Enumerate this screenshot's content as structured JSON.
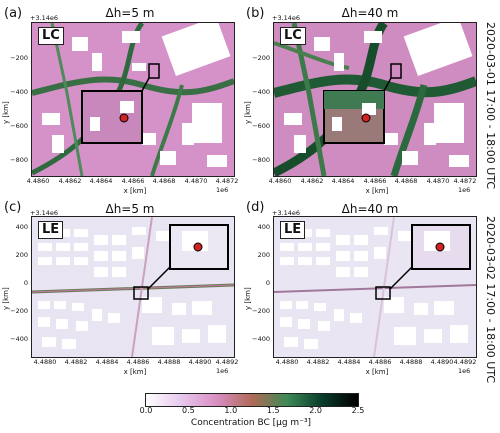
{
  "figure": {
    "date_top": "2020-03-01 17:00 - 18:00 UTC",
    "date_bottom": "2020-03-02 17:00 - 18:00 UTC",
    "x_offset_label": "1e6",
    "y_offset_label": "+3.14e6",
    "xlabel": "x [km]",
    "ylabel": "y [km]"
  },
  "panels": [
    {
      "letter": "(a)",
      "title": "Δh=5 m",
      "tag": "LC",
      "xticks": [
        "4.4860",
        "4.4862",
        "4.4864",
        "4.4866",
        "4.4868",
        "4.4870",
        "4.4872"
      ],
      "yticks": [
        "−200",
        "−400",
        "−600",
        "−800"
      ]
    },
    {
      "letter": "(b)",
      "title": "Δh=40 m",
      "tag": "LC",
      "xticks": [
        "4.4860",
        "4.4862",
        "4.4864",
        "4.4866",
        "4.4868",
        "4.4870",
        "4.4872"
      ],
      "yticks": [
        "−200",
        "−400",
        "−600",
        "−800"
      ]
    },
    {
      "letter": "(c)",
      "title": "Δh=5 m",
      "tag": "LE",
      "xticks": [
        "4.4880",
        "4.4882",
        "4.4884",
        "4.4886",
        "4.4888",
        "4.4890",
        "4.4892"
      ],
      "yticks": [
        "400",
        "200",
        "0",
        "−200",
        "−400"
      ]
    },
    {
      "letter": "(d)",
      "title": "Δh=40 m",
      "tag": "LE",
      "xticks": [
        "4.4880",
        "4.4882",
        "4.4884",
        "4.4886",
        "4.4888",
        "4.4890",
        "4.4892"
      ],
      "yticks": [
        "400",
        "200",
        "0",
        "−200",
        "−400"
      ]
    }
  ],
  "colorbar": {
    "label": "Concentration BC [µg m⁻³]",
    "ticks": [
      "0.0",
      "0.5",
      "1.0",
      "1.5",
      "2.0",
      "2.5"
    ],
    "min": 0.0,
    "max": 2.5,
    "colors": [
      "#ffffff",
      "#e6c8ee",
      "#d98ec4",
      "#b06a55",
      "#3d8a57",
      "#0a3a2a",
      "#000000"
    ]
  },
  "colors": {
    "background_lc": "#d592c8",
    "road_lc": "#2e6a3e",
    "background_le": "#e9e4f2",
    "building": "#ffffff",
    "marker": "#d22222"
  }
}
